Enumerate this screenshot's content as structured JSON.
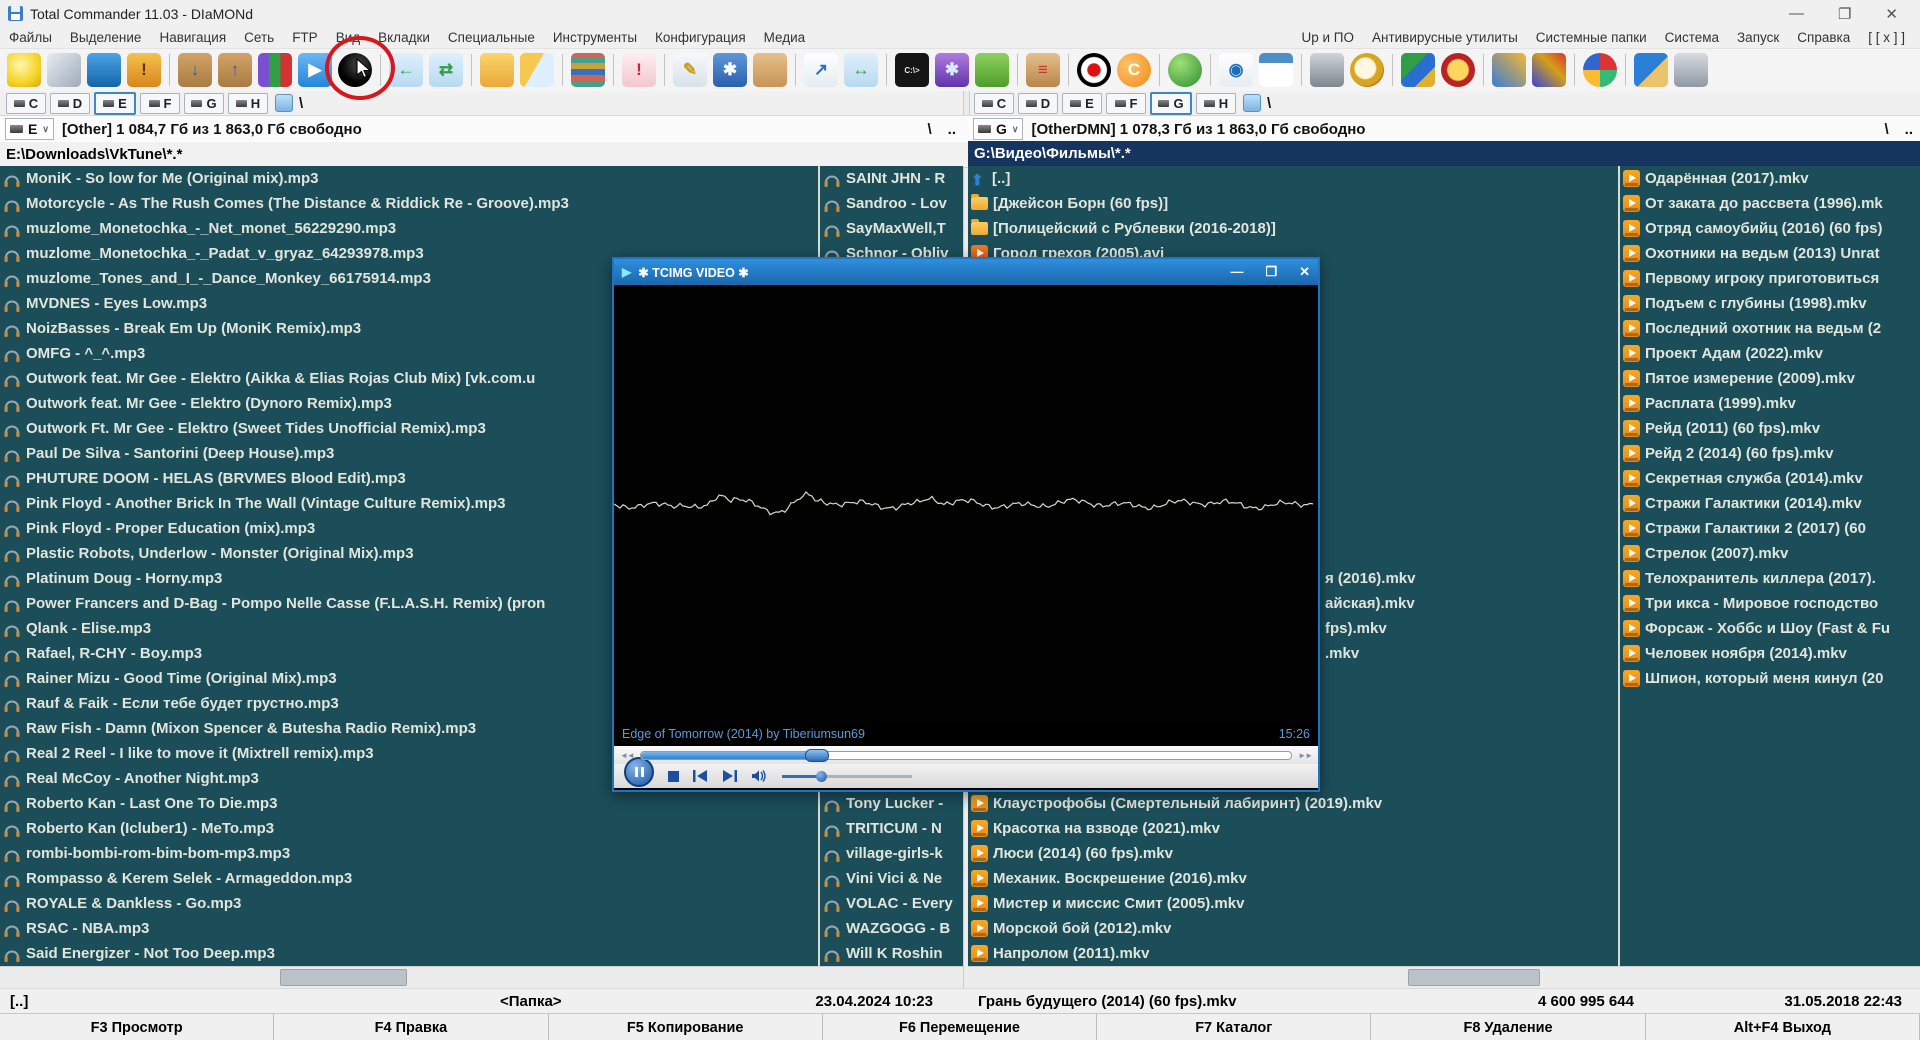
{
  "window": {
    "title": "Total Commander 11.03 - DIaMONd",
    "minimize": "—",
    "maximize": "❐",
    "close": "✕"
  },
  "menu": {
    "left": [
      "Файлы",
      "Выделение",
      "Навигация",
      "Сеть",
      "FTP",
      "Вид",
      "Вкладки",
      "Специальные",
      "Инструменты",
      "Конфигурация",
      "Медиа"
    ],
    "right": [
      "Up и ПО",
      "Антивирусные утилиты",
      "Системные папки",
      "Система",
      "Запуск",
      "Справка",
      "[ [ x ] ]"
    ]
  },
  "toolbar": {
    "groups": [
      [
        {
          "name": "lightbulb-icon",
          "glyph": "",
          "bg": "radial-gradient(circle at 40% 35%, #fff7b0, #f5d425 60%, #d9a810)"
        },
        {
          "name": "tools-icon",
          "glyph": "",
          "bg": "linear-gradient(135deg,#e7ecf2,#9fabb8)"
        },
        {
          "name": "display-icon",
          "glyph": "",
          "bg": "linear-gradient(#4aa3e8,#1565a8)"
        },
        {
          "name": "shield-icon",
          "glyph": "!",
          "gc": "#5a3000",
          "bg": "linear-gradient(#f6c14d,#d8861a)"
        }
      ],
      [
        {
          "name": "unpack-archive-icon",
          "glyph": "↓",
          "gc": "#1d5fd0",
          "bg": "linear-gradient(#d2a368,#a97c46)"
        },
        {
          "name": "pack-archive-icon",
          "glyph": "↑",
          "gc": "#1d5fd0",
          "bg": "linear-gradient(#d2a368,#a97c46)"
        },
        {
          "name": "winrar-icon",
          "glyph": "",
          "bg": "linear-gradient(90deg,#7a4fd0 33%,#2f9e44 33% 66%,#d33333 66%)"
        },
        {
          "name": "play-video-icon",
          "glyph": "▶",
          "gc": "#ffffff",
          "bg": "linear-gradient(#6cb6f5,#2585d8)"
        },
        {
          "name": "pie-icon",
          "glyph": "",
          "round": true,
          "bg": "radial-gradient(circle at 60% 35%,#333 0 18%,#000 60%)"
        }
      ],
      [
        {
          "name": "merge-left-icon",
          "glyph": "←",
          "gc": "#2f9e44",
          "bg": "linear-gradient(#dff0fb,#b8d9f2)"
        },
        {
          "name": "merge-panes-icon",
          "glyph": "⇄",
          "gc": "#2f9e44",
          "bg": "linear-gradient(#dff0fb,#b8d9f2)"
        }
      ],
      [
        {
          "name": "new-folder-icon",
          "glyph": "",
          "bg": "linear-gradient(#fbd56b,#eaa93a)"
        },
        {
          "name": "copy-structure-icon",
          "glyph": "",
          "bg": "linear-gradient(120deg,#f6c851 0 45%,#dfeefb 45%)"
        }
      ],
      [
        {
          "name": "thumbnails-icon",
          "glyph": "",
          "bg": "repeating-linear-gradient(0deg,#49a08a 0 6px,#cf6655 6px 12px,#3a6fc0 12px 18px,#c9a13a 18px 24px)"
        }
      ],
      [
        {
          "name": "warning-file-icon",
          "glyph": "!",
          "gc": "#cc2233",
          "bg": "linear-gradient(#fdeef1,#f3c6ce)"
        }
      ],
      [
        {
          "name": "edit-lists-icon",
          "glyph": "✎",
          "gc": "#c99b20",
          "bg": "linear-gradient(#f6f9fc,#d8e2ea)"
        },
        {
          "name": "settings-gear-icon",
          "glyph": "✱",
          "gc": "#ffffff",
          "bg": "linear-gradient(#5e97d8,#2a5fae)"
        },
        {
          "name": "clipboard-icon",
          "glyph": "",
          "bg": "linear-gradient(#e5c08b,#c79455)"
        }
      ],
      [
        {
          "name": "shortcut-file-icon",
          "glyph": "↗",
          "gc": "#2a6fd0",
          "bg": "linear-gradient(#ffffff,#e4ecf3)"
        },
        {
          "name": "swap-panels-icon",
          "glyph": "↔",
          "gc": "#2f9e44",
          "bg": "linear-gradient(#dff0fb,#b8d9f2)"
        }
      ],
      [
        {
          "name": "command-prompt-icon",
          "glyph": "C:\\>",
          "gc": "#e8e8e8",
          "small": true,
          "bg": "#151515"
        },
        {
          "name": "gears-icon",
          "glyph": "✱",
          "gc": "#d9ecff",
          "bg": "linear-gradient(#b07ae0,#5f35a8)"
        },
        {
          "name": "cubes-icon",
          "glyph": "",
          "bg": "linear-gradient(#8fd15e,#4f9e2a)"
        }
      ],
      [
        {
          "name": "clipboard-colors-icon",
          "glyph": "≡",
          "gc": "#cc3333",
          "bg": "linear-gradient(#e5c08b,#b9854a)"
        }
      ],
      [
        {
          "name": "record-icon",
          "glyph": "",
          "round": true,
          "bg": "radial-gradient(circle,#dd1111 0 26%,#ffffff 30% 52%,#000000 56% 72%,#ffffff 76%)"
        },
        {
          "name": "ccleaner-icon",
          "glyph": "C",
          "gc": "#ffffff",
          "round": true,
          "bg": "radial-gradient(circle at 35% 35%,#ffc46b,#f08a18)"
        }
      ],
      [
        {
          "name": "green-ball-icon",
          "glyph": "",
          "round": true,
          "bg": "radial-gradient(circle at 35% 30%,#9fe07a,#2e8f2e)"
        }
      ],
      [
        {
          "name": "viewer-eye-icon",
          "glyph": "◉",
          "gc": "#1b6fb8",
          "bg": "linear-gradient(#ffffff,#e7edf3)"
        },
        {
          "name": "layout-icon",
          "glyph": "",
          "bg": "linear-gradient(#4d8fc4 0 30%,#ffffff 30%)"
        }
      ],
      [
        {
          "name": "binoculars-icon",
          "glyph": "",
          "bg": "linear-gradient(#cfd4da,#7d8790)"
        },
        {
          "name": "magnifier-icon",
          "glyph": "",
          "round": true,
          "bg": "radial-gradient(circle at 45% 45%,#fff8e0 0 38%,#d9a520 44% 64%,#b97a14 70%)"
        }
      ],
      [
        {
          "name": "media-album-icon",
          "glyph": "",
          "bg": "linear-gradient(135deg,#2f9e44 0 40%,#2a6fd0 40% 70%,#e0b030 70%)"
        },
        {
          "name": "ussr-emblem-icon",
          "glyph": "",
          "round": true,
          "bg": "radial-gradient(circle,#ffd75e 0 42%,#bb2222 48%)"
        }
      ],
      [
        {
          "name": "games-picture-icon",
          "glyph": "",
          "bg": "linear-gradient(45deg,#3a7bd5,#f7b733)"
        },
        {
          "name": "games-picture2-icon",
          "glyph": "",
          "bg": "linear-gradient(45deg,#3344dd,#d4a017 60%,#dd3333)"
        }
      ],
      [
        {
          "name": "gamepad-icon",
          "glyph": "",
          "round": true,
          "bg": "conic-gradient(#dd3333 0 25%,#33bb77 0 50%,#ffbb33 0 75%,#3366cc 0)"
        }
      ],
      [
        {
          "name": "windows-clean-icon",
          "glyph": "",
          "bg": "linear-gradient(135deg,#2a7fd6 0 55%,#e9c46a 55%)"
        },
        {
          "name": "trash-icon",
          "glyph": "",
          "bg": "linear-gradient(#d7dbe0,#8f99a3)"
        }
      ]
    ]
  },
  "left_panel": {
    "tabs": [
      "C",
      "D",
      "E",
      "F",
      "G",
      "H"
    ],
    "selected_tab": "E",
    "root_slash": "\\",
    "drive": "E",
    "combo_arrow": "∨",
    "drive_info": "[Other]  1 084,7 Гб из 1 863,0 Гб свободно",
    "root": "\\",
    "updir": "..",
    "path": "E:\\Downloads\\VkTune\\*.*",
    "files": [
      "MoniK - So low for Me (Original mix).mp3",
      "Motorcycle - As The Rush Comes (The Distance & Riddick Re - Groove).mp3",
      "muzlome_Monetochka_-_Net_monet_56229290.mp3",
      "muzlome_Monetochka_-_Padat_v_gryaz_64293978.mp3",
      "muzlome_Tones_and_I_-_Dance_Monkey_66175914.mp3",
      "MVDNES - Eyes Low.mp3",
      "NoizBasses - Break Em Up (MoniK Remix).mp3",
      "OMFG - ^_^.mp3",
      "Outwork feat. Mr Gee - Elektro (Aikka & Elias Rojas Club Mix) [vk.com.u",
      "Outwork feat. Mr Gee - Elektro (Dynoro Remix).mp3",
      "Outwork Ft. Mr Gee - Elektro (Sweet Tides Unofficial Remix).mp3",
      "Paul De Silva - Santorini (Deep House).mp3",
      "PHUTURE DOOM - HELAS (BRVMES Blood Edit).mp3",
      "Pink Floyd - Another Brick In The Wall (Vintage Culture Remix).mp3",
      "Pink Floyd - Proper Education (mix).mp3",
      "Plastic Robots, Underlow - Monster (Original Mix).mp3",
      "Platinum Doug - Horny.mp3",
      "Power Francers and D-Bag - Pompo Nelle Casse (F.L.A.S.H. Remix) (pron",
      "Qlank - Elise.mp3",
      "Rafael, R-CHY - Boy.mp3",
      "Rainer Mizu - Good Time (Original Mix).mp3",
      "Rauf & Faik - Если тебе будет грустно.mp3",
      "Raw Fish - Damn (Mixon Spencer & Butesha Radio Remix).mp3",
      "Real 2 Reel - I like to move it (Mixtrell remix).mp3",
      "Real McCoy - Another Night.mp3",
      "Roberto Kan - Last One To Die.mp3",
      "Roberto Kan (Icluber1) - MeTo.mp3",
      "rombi-bombi-rom-bim-bom-mp3.mp3",
      "Rompasso & Kerem Selek - Armageddon.mp3",
      "ROYALE & Dankless - Go.mp3",
      "RSAC - NBA.mp3",
      "Said Energizer - Not Too Deep.mp3"
    ],
    "artists_top": [
      "SAINt JHN - R",
      "Sandroo - Lov",
      "SayMaxWell,T",
      "Schnor - Obliv"
    ],
    "artists_bottom": [
      "Tony Lucker -",
      "TRITICUM - N",
      "village-girls-k",
      "Vini Vici & Ne",
      "VOLAC - Every",
      "WAZGOGG - B",
      "Will K Roshin"
    ],
    "status": {
      "name": "[..]",
      "type": "<Папка>",
      "date": "23.04.2024 10:23"
    }
  },
  "right_panel": {
    "tabs": [
      "C",
      "D",
      "E",
      "F",
      "G",
      "H"
    ],
    "selected_tab": "G",
    "root_slash": "\\",
    "drive": "G",
    "combo_arrow": "∨",
    "drive_info": "[OtherDMN]  1 078,3 Гб из 1 863,0 Гб свободно",
    "root": "\\",
    "updir": "..",
    "path": "G:\\Видео\\Фильмы\\*.*",
    "col1_top": [
      {
        "icon": "up",
        "label": "[..]"
      },
      {
        "icon": "folder",
        "label": "[Джейсон Борн (60 fps)]"
      },
      {
        "icon": "folder",
        "label": "[Полицейский с Рублевки (2016-2018)]"
      },
      {
        "icon": "avi",
        "label": "Город грехов (2005).avi"
      }
    ],
    "col1_fragments": [
      "я (2016).mkv",
      "айская).mkv",
      "fps).mkv",
      ".mkv"
    ],
    "col1_bottom": [
      "Клаустрофобы (Смертельный лабиринт) (2019).mkv",
      "Красотка на взводе (2021).mkv",
      "Люси (2014) (60 fps).mkv",
      "Механик. Воскрешение (2016).mkv",
      "Мистер и миссис Смит (2005).mkv",
      "Морской бой (2012).mkv",
      "Напролом (2011).mkv"
    ],
    "col2": [
      "Одарённая (2017).mkv",
      "От заката до рассвета (1996).mk",
      "Отряд самоубийц (2016) (60 fps)",
      "Охотники на ведьм (2013) Unrat",
      "Первому игроку приготовиться",
      "Подъем с глубины (1998).mkv",
      "Последний охотник на ведьм (2",
      "Проект Адам (2022).mkv",
      "Пятое измерение (2009).mkv",
      "Расплата (1999).mkv",
      "Рейд (2011) (60 fps).mkv",
      "Рейд 2 (2014) (60 fps).mkv",
      "Секретная служба (2014).mkv",
      "Стражи Галактики (2014).mkv",
      "Стражи Галактики 2 (2017) (60",
      "Стрелок (2007).mkv",
      "Телохранитель киллера (2017).",
      "Три икса - Мировое господство",
      "Форсаж - Хоббс и Шоу (Fast & Fu",
      "Человек ноября (2014).mkv",
      "Шпион, который меня кинул (20"
    ],
    "status": {
      "name": "Грань будущего (2014) (60 fps).mkv",
      "size": "4 600 995 644",
      "date": "31.05.2018 22:43"
    }
  },
  "player": {
    "title": "✱ TCIMG VIDEO ✱",
    "title_icon": "▶",
    "minimize": "—",
    "maximize": "❒",
    "close": "✕",
    "overlay_title": "Edge of Tomorrow (2014) by Tiberiumsun69",
    "time": "15:26",
    "rewind": "◄◄",
    "forward": "►►",
    "progress_pct": 27,
    "volume_pct": 30
  },
  "fkeys": [
    "F3 Просмотр",
    "F4 Правка",
    "F5 Копирование",
    "F6 Перемещение",
    "F7 Каталог",
    "F8 Удаление",
    "Alt+F4 Выход"
  ],
  "colors": {
    "panel_bg": "#1b4e59",
    "active_path_bg": "#16355e",
    "title_blue": "#2f8fdd",
    "accent_red": "#d8161c"
  }
}
